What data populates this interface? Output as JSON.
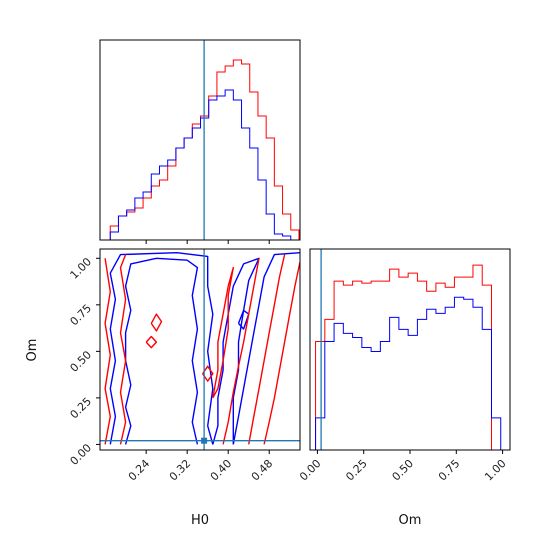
{
  "chart_data": [
    {
      "type": "histogram",
      "panel": "H0-marginal",
      "xlim": [
        0.15,
        0.54
      ],
      "bin_edges": [
        0.17,
        0.186,
        0.202,
        0.218,
        0.234,
        0.25,
        0.266,
        0.282,
        0.298,
        0.314,
        0.33,
        0.346,
        0.362,
        0.378,
        0.394,
        0.41,
        0.426,
        0.442,
        0.458,
        0.474,
        0.49,
        0.506,
        0.522,
        0.538
      ],
      "series": [
        {
          "color": "#ff0000",
          "values": [
            0.07,
            0.12,
            0.14,
            0.16,
            0.21,
            0.27,
            0.3,
            0.37,
            0.46,
            0.51,
            0.58,
            0.62,
            0.72,
            0.84,
            0.87,
            0.9,
            0.88,
            0.74,
            0.62,
            0.51,
            0.27,
            0.13,
            0.05
          ]
        },
        {
          "color": "#0000ff",
          "values": [
            0.04,
            0.12,
            0.15,
            0.21,
            0.24,
            0.33,
            0.37,
            0.4,
            0.46,
            0.51,
            0.56,
            0.61,
            0.7,
            0.72,
            0.75,
            0.7,
            0.56,
            0.46,
            0.3,
            0.13,
            0.03,
            0.02,
            0.0
          ]
        }
      ],
      "truth_line": {
        "x": 0.353,
        "color": "#1f77b4"
      }
    },
    {
      "type": "histogram",
      "panel": "Om-marginal",
      "xlim": [
        -0.04,
        1.04
      ],
      "bin_edges": [
        -0.01,
        0.04,
        0.09,
        0.14,
        0.19,
        0.24,
        0.29,
        0.34,
        0.39,
        0.44,
        0.49,
        0.54,
        0.59,
        0.64,
        0.69,
        0.74,
        0.79,
        0.84,
        0.89,
        0.94,
        0.99
      ],
      "series": [
        {
          "color": "#ff0000",
          "values": [
            0.54,
            0.65,
            0.84,
            0.82,
            0.84,
            0.83,
            0.84,
            0.84,
            0.9,
            0.86,
            0.88,
            0.84,
            0.79,
            0.83,
            0.81,
            0.86,
            0.86,
            0.92,
            0.82,
            0.0
          ]
        },
        {
          "color": "#0000ff",
          "values": [
            0.16,
            0.54,
            0.63,
            0.58,
            0.56,
            0.51,
            0.49,
            0.54,
            0.66,
            0.6,
            0.57,
            0.65,
            0.7,
            0.68,
            0.71,
            0.76,
            0.75,
            0.71,
            0.6,
            0.16
          ]
        }
      ],
      "truth_line": {
        "x": 0.02,
        "color": "#1f77b4"
      }
    },
    {
      "type": "contour",
      "panel": "H0-vs-Om",
      "xlabel": "H0",
      "ylabel": "Om",
      "xlim": [
        0.15,
        0.54
      ],
      "ylim": [
        -0.03,
        1.05
      ],
      "xticks": [
        "0.24",
        "0.32",
        "0.40",
        "0.48"
      ],
      "xtick_values": [
        0.24,
        0.32,
        0.4,
        0.48
      ],
      "yticks": [
        "0.00",
        "0.25",
        "0.50",
        "0.75",
        "1.00"
      ],
      "ytick_values": [
        0.0,
        0.25,
        0.5,
        0.75,
        1.0
      ],
      "truth_point": {
        "x": 0.353,
        "y": 0.02,
        "color": "#1f77b4"
      },
      "series": [
        {
          "color": "#0000ff",
          "contours": [
            [
              [
                0.2,
                0.0
              ],
              [
                0.21,
                0.1
              ],
              [
                0.2,
                0.2
              ],
              [
                0.21,
                0.32
              ],
              [
                0.2,
                0.45
              ],
              [
                0.2,
                0.6
              ],
              [
                0.21,
                0.72
              ],
              [
                0.2,
                0.85
              ],
              [
                0.21,
                0.97
              ],
              [
                0.26,
                1.0
              ],
              [
                0.32,
                0.99
              ],
              [
                0.34,
                0.95
              ],
              [
                0.33,
                0.8
              ],
              [
                0.34,
                0.62
              ],
              [
                0.33,
                0.45
              ],
              [
                0.34,
                0.28
              ],
              [
                0.33,
                0.12
              ],
              [
                0.34,
                0.0
              ]
            ],
            [
              [
                0.17,
                0.0
              ],
              [
                0.18,
                0.15
              ],
              [
                0.17,
                0.3
              ],
              [
                0.18,
                0.45
              ],
              [
                0.17,
                0.62
              ],
              [
                0.18,
                0.78
              ],
              [
                0.17,
                0.92
              ],
              [
                0.19,
                1.02
              ],
              [
                0.3,
                1.03
              ],
              [
                0.36,
                1.01
              ],
              [
                0.36,
                0.85
              ],
              [
                0.37,
                0.7
              ],
              [
                0.36,
                0.5
              ],
              [
                0.37,
                0.3
              ],
              [
                0.36,
                0.1
              ],
              [
                0.37,
                0.0
              ]
            ],
            [
              [
                0.37,
                0.0
              ],
              [
                0.38,
                0.1
              ],
              [
                0.38,
                0.25
              ],
              [
                0.39,
                0.4
              ],
              [
                0.39,
                0.55
              ],
              [
                0.4,
                0.7
              ],
              [
                0.41,
                0.85
              ],
              [
                0.43,
                0.97
              ],
              [
                0.46,
                1.0
              ],
              [
                0.44,
                0.88
              ],
              [
                0.43,
                0.72
              ],
              [
                0.42,
                0.55
              ],
              [
                0.42,
                0.4
              ],
              [
                0.41,
                0.25
              ],
              [
                0.41,
                0.1
              ],
              [
                0.41,
                0.0
              ]
            ],
            [
              [
                0.41,
                0.0
              ],
              [
                0.42,
                0.15
              ],
              [
                0.43,
                0.3
              ],
              [
                0.44,
                0.45
              ],
              [
                0.45,
                0.6
              ],
              [
                0.46,
                0.75
              ],
              [
                0.47,
                0.9
              ],
              [
                0.49,
                1.02
              ],
              [
                0.54,
                1.03
              ]
            ],
            [
              [
                0.42,
                0.65
              ],
              [
                0.43,
                0.72
              ],
              [
                0.44,
                0.7
              ],
              [
                0.43,
                0.62
              ],
              [
                0.42,
                0.65
              ]
            ]
          ]
        },
        {
          "color": "#ff0000",
          "contours": [
            [
              [
                0.16,
                0.0
              ],
              [
                0.17,
                0.15
              ],
              [
                0.16,
                0.3
              ],
              [
                0.17,
                0.48
              ],
              [
                0.16,
                0.65
              ],
              [
                0.17,
                0.82
              ],
              [
                0.16,
                1.0
              ]
            ],
            [
              [
                0.19,
                0.0
              ],
              [
                0.2,
                0.12
              ],
              [
                0.19,
                0.28
              ],
              [
                0.2,
                0.45
              ],
              [
                0.19,
                0.6
              ],
              [
                0.2,
                0.78
              ],
              [
                0.19,
                0.95
              ],
              [
                0.2,
                1.02
              ]
            ],
            [
              [
                0.39,
                0.0
              ],
              [
                0.4,
                0.12
              ],
              [
                0.41,
                0.28
              ],
              [
                0.42,
                0.42
              ],
              [
                0.43,
                0.55
              ],
              [
                0.44,
                0.7
              ],
              [
                0.45,
                0.85
              ],
              [
                0.46,
                1.0
              ]
            ],
            [
              [
                0.44,
                0.0
              ],
              [
                0.45,
                0.15
              ],
              [
                0.46,
                0.3
              ],
              [
                0.47,
                0.45
              ],
              [
                0.48,
                0.6
              ],
              [
                0.49,
                0.75
              ],
              [
                0.5,
                0.9
              ],
              [
                0.51,
                1.02
              ]
            ],
            [
              [
                0.47,
                0.0
              ],
              [
                0.48,
                0.12
              ],
              [
                0.49,
                0.25
              ],
              [
                0.5,
                0.4
              ],
              [
                0.51,
                0.55
              ],
              [
                0.52,
                0.7
              ],
              [
                0.53,
                0.85
              ],
              [
                0.54,
                0.98
              ]
            ],
            [
              [
                0.37,
                0.25
              ],
              [
                0.38,
                0.4
              ],
              [
                0.38,
                0.55
              ],
              [
                0.39,
                0.7
              ],
              [
                0.4,
                0.85
              ],
              [
                0.41,
                0.95
              ],
              [
                0.4,
                0.8
              ],
              [
                0.4,
                0.62
              ],
              [
                0.39,
                0.45
              ],
              [
                0.38,
                0.3
              ],
              [
                0.37,
                0.25
              ]
            ],
            [
              [
                0.25,
                0.65
              ],
              [
                0.26,
                0.7
              ],
              [
                0.27,
                0.66
              ],
              [
                0.26,
                0.61
              ],
              [
                0.25,
                0.65
              ]
            ],
            [
              [
                0.24,
                0.55
              ],
              [
                0.25,
                0.58
              ],
              [
                0.26,
                0.55
              ],
              [
                0.25,
                0.52
              ],
              [
                0.24,
                0.55
              ]
            ],
            [
              [
                0.35,
                0.38
              ],
              [
                0.36,
                0.42
              ],
              [
                0.37,
                0.38
              ],
              [
                0.36,
                0.34
              ],
              [
                0.35,
                0.38
              ]
            ]
          ]
        }
      ]
    },
    {
      "type": "axis",
      "panel": "Om-marginal-axis",
      "xlabel": "Om",
      "xticks": [
        "0.00",
        "0.25",
        "0.50",
        "0.75",
        "1.00"
      ],
      "xtick_values": [
        0.0,
        0.25,
        0.5,
        0.75,
        1.0
      ]
    }
  ]
}
